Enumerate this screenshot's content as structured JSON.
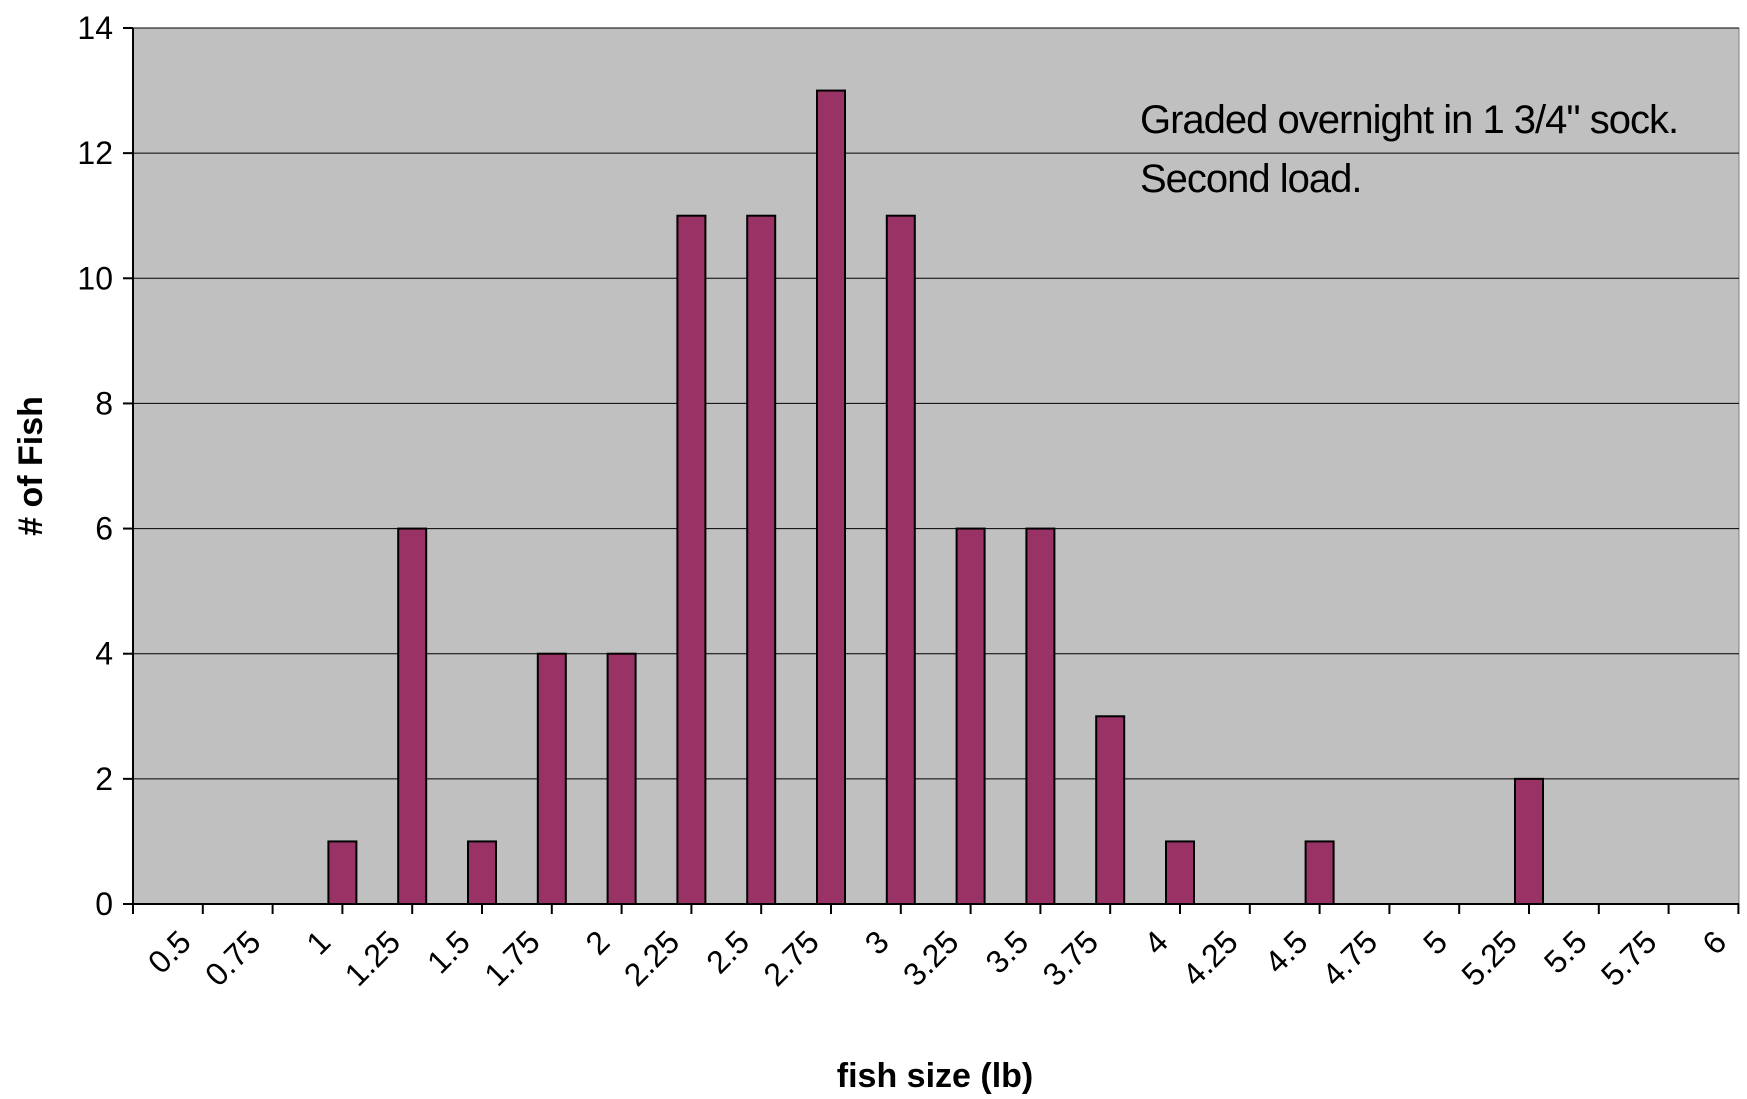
{
  "chart_data": {
    "type": "bar",
    "title": "",
    "xlabel": "fish size (lb)",
    "ylabel": "# of Fish",
    "categories": [
      "0.5",
      "0.75",
      "1",
      "1.25",
      "1.5",
      "1.75",
      "2",
      "2.25",
      "2.5",
      "2.75",
      "3",
      "3.25",
      "3.5",
      "3.75",
      "4",
      "4.25",
      "4.5",
      "4.75",
      "5",
      "5.25",
      "5.5",
      "5.75",
      "6"
    ],
    "values": [
      0,
      0,
      1,
      6,
      1,
      4,
      4,
      11,
      11,
      13,
      11,
      6,
      6,
      3,
      1,
      0,
      1,
      0,
      0,
      2,
      0,
      0,
      0
    ],
    "ylim": [
      0,
      14
    ],
    "yticks": [
      0,
      2,
      4,
      6,
      8,
      10,
      12,
      14
    ],
    "grid": true,
    "legend": "none",
    "annotation_lines": [
      "Graded overnight in 1 3/4\" sock.",
      "Second load."
    ],
    "colors": {
      "bar_fill": "#993366",
      "bar_stroke": "#000000",
      "plot_background": "#c0c0c0",
      "gridline": "#000000"
    }
  }
}
